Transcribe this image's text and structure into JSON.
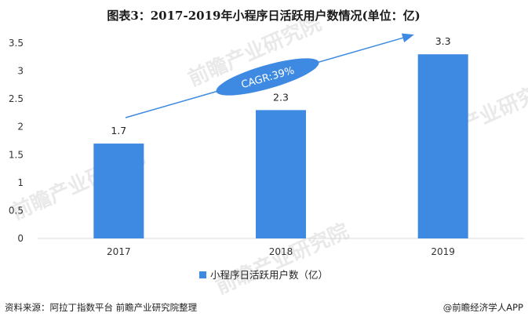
{
  "title": "图表3：2017-2019年小程序日活跃用户数情况(单位：亿)",
  "source": "资料来源：阿拉丁指数平台 前瞻产业研究院整理",
  "brand": "@前瞻经济学人APP",
  "watermark": "前瞻产业研究院",
  "cagr_label": "CAGR:39%",
  "colors": {
    "bar": "#3e8ae3",
    "arrow": "#3e8ae3",
    "ellipse": "#3e8ae3"
  },
  "chart_data": {
    "type": "bar",
    "categories": [
      "2017",
      "2018",
      "2019"
    ],
    "series": [
      {
        "name": "小程序日活跃用户数（亿）",
        "values": [
          1.7,
          2.3,
          3.3
        ]
      }
    ],
    "data_labels": [
      "1.7",
      "2.3",
      "3.3"
    ],
    "y_ticks": [
      "0",
      "0.5",
      "1",
      "1.5",
      "2",
      "2.5",
      "3",
      "3.5"
    ],
    "ylim": [
      0,
      3.5
    ],
    "grid": false,
    "legend": "bottom-center",
    "annotation": "CAGR:39%"
  }
}
